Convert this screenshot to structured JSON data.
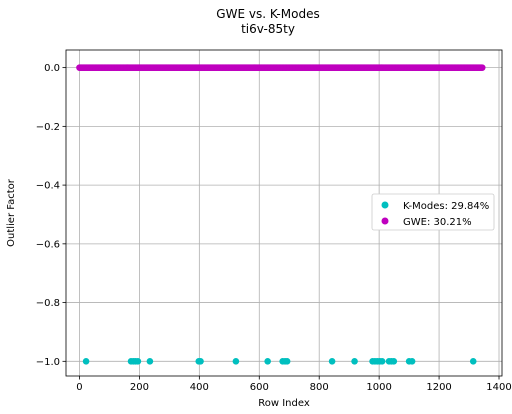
{
  "chart_data": {
    "type": "scatter",
    "title": "GWE vs. K-Modes",
    "subtitle": "ti6v-85ty",
    "xlabel": "Row Index",
    "ylabel": "Outlier Factor",
    "xlim": [
      -45,
      1410
    ],
    "ylim": [
      -1.05,
      0.06
    ],
    "x_ticks": [
      0,
      200,
      400,
      600,
      800,
      1000,
      1200,
      1400
    ],
    "y_ticks": [
      0.0,
      -0.2,
      -0.4,
      -0.6,
      -0.8,
      -1.0
    ],
    "grid": true,
    "legend_position": "center-right",
    "series": [
      {
        "name": "GWE: 30.21%",
        "color": "#bf00bf",
        "y_value": 0.0,
        "x_range": [
          0,
          1345
        ],
        "note": "dense band of points at y = 0 across all row indices"
      },
      {
        "name": "K-Modes: 29.84%",
        "color": "#00bfbf",
        "points": [
          {
            "x": 22,
            "y": -1.0
          },
          {
            "x": 172,
            "y": -1.0
          },
          {
            "x": 180,
            "y": -1.0
          },
          {
            "x": 187,
            "y": -1.0
          },
          {
            "x": 195,
            "y": -1.0
          },
          {
            "x": 235,
            "y": -1.0
          },
          {
            "x": 398,
            "y": -1.0
          },
          {
            "x": 404,
            "y": -1.0
          },
          {
            "x": 522,
            "y": -1.0
          },
          {
            "x": 628,
            "y": -1.0
          },
          {
            "x": 678,
            "y": -1.0
          },
          {
            "x": 686,
            "y": -1.0
          },
          {
            "x": 693,
            "y": -1.0
          },
          {
            "x": 843,
            "y": -1.0
          },
          {
            "x": 918,
            "y": -1.0
          },
          {
            "x": 978,
            "y": -1.0
          },
          {
            "x": 986,
            "y": -1.0
          },
          {
            "x": 994,
            "y": -1.0
          },
          {
            "x": 1002,
            "y": -1.0
          },
          {
            "x": 1010,
            "y": -1.0
          },
          {
            "x": 1033,
            "y": -1.0
          },
          {
            "x": 1041,
            "y": -1.0
          },
          {
            "x": 1049,
            "y": -1.0
          },
          {
            "x": 1100,
            "y": -1.0
          },
          {
            "x": 1110,
            "y": -1.0
          },
          {
            "x": 1314,
            "y": -1.0
          }
        ]
      }
    ],
    "legend": [
      {
        "label": "K-Modes: 29.84%",
        "color": "#00bfbf"
      },
      {
        "label": "GWE: 30.21%",
        "color": "#bf00bf"
      }
    ]
  }
}
